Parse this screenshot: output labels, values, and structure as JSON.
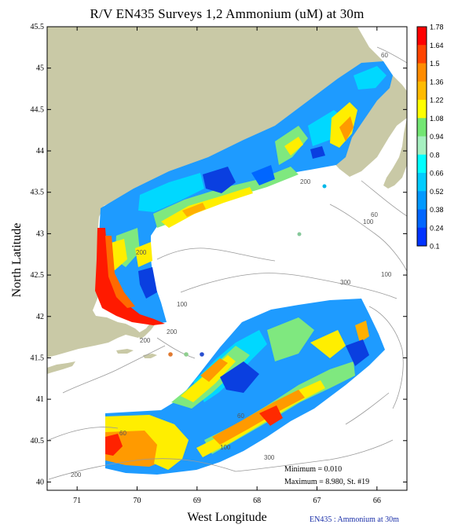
{
  "title": "R/V EN435 Surveys 1,2 Ammonium (uM) at 30m",
  "axes": {
    "xlabel": "West Longitude",
    "ylabel": "North Latitude",
    "x_ticks": [
      "71",
      "70",
      "69",
      "68",
      "67",
      "66"
    ],
    "y_ticks": [
      "45.5",
      "45",
      "44.5",
      "44",
      "43.5",
      "43",
      "42.5",
      "42",
      "41.5",
      "41",
      "40.5",
      "40"
    ],
    "xlim": [
      -71.5,
      -65.5
    ],
    "ylim": [
      39.9,
      45.5
    ]
  },
  "colorbar": {
    "labels": [
      "1.78",
      "1.64",
      "1.5",
      "1.36",
      "1.22",
      "1.08",
      "0.94",
      "0.8",
      "0.66",
      "0.52",
      "0.38",
      "0.24",
      "0.1"
    ],
    "colors": [
      "#ff0000",
      "#ff4400",
      "#ff8c00",
      "#ffbb00",
      "#ffff00",
      "#73e673",
      "#a6f0c0",
      "#00ffff",
      "#00ccff",
      "#0099ff",
      "#0066ff",
      "#0033ff",
      "#0000ff"
    ]
  },
  "contour_labels": [
    "60",
    "200",
    "100",
    "300",
    "200",
    "100",
    "60",
    "100",
    "60",
    "200",
    "200",
    "60",
    "200",
    "300",
    "100"
  ],
  "stats": {
    "minimum": "Minimum = 0.010",
    "maximum": "Maximum = 8.980, St. #19"
  },
  "footer": "EN435 : Ammonium at 30m",
  "colors": {
    "land": "#c9c9a6",
    "water": "#ffffff",
    "frame": "#000000",
    "contour": "#9a9a9a"
  }
}
